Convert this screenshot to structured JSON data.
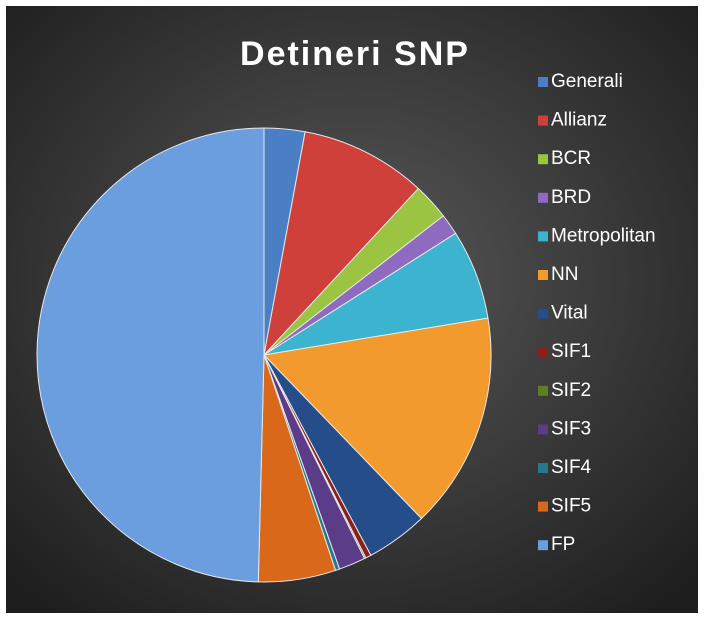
{
  "chart_data": {
    "type": "pie",
    "title": "Detineri SNP",
    "categories": [
      "Generali",
      "Allianz",
      "BCR",
      "BRD",
      "Metropolitan",
      "NN",
      "Vital",
      "SIF1",
      "SIF2",
      "SIF3",
      "SIF4",
      "SIF5",
      "FP"
    ],
    "values": [
      2.9,
      9.0,
      2.6,
      1.5,
      6.4,
      15.4,
      4.4,
      0.4,
      0.1,
      1.9,
      0.3,
      5.5,
      49.6
    ],
    "colors": [
      "#4a7fc6",
      "#d0403a",
      "#9bc442",
      "#8e6bc0",
      "#3cb4d0",
      "#f39a2e",
      "#244d8a",
      "#8b1e1e",
      "#5f7e23",
      "#5b3c88",
      "#237a8f",
      "#d9681a",
      "#6a9ede"
    ],
    "legend": "right"
  }
}
